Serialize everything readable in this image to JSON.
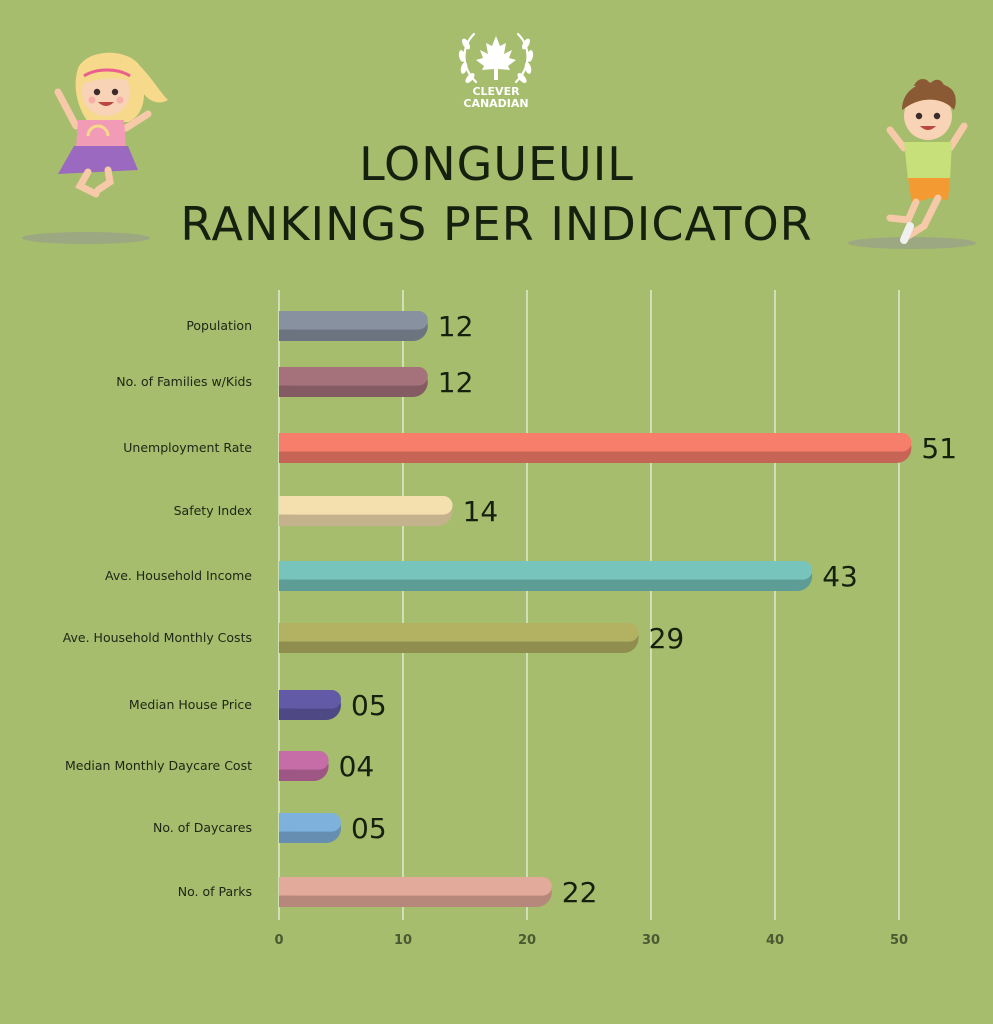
{
  "brand": {
    "line1": "CLEVER",
    "line2": "CANADIAN"
  },
  "header": {
    "line1": "LONGUEUIL",
    "line2": "RANKINGS PER INDICATOR"
  },
  "icons": [
    "maple-leaf-icon",
    "laurel-wreath-icon",
    "girl-illustration",
    "boy-illustration"
  ],
  "chart_data": {
    "type": "bar",
    "orientation": "horizontal",
    "title": "LONGUEUIL RANKINGS PER INDICATOR",
    "categories": [
      "Population",
      "No. of Families w/Kids",
      "Unemployment Rate",
      "Safety Index",
      "Ave. Household Income",
      "Ave. Household Monthly Costs",
      "Median House Price",
      "Median Monthly Daycare Cost",
      "No. of Daycares",
      "No. of Parks"
    ],
    "values": [
      12,
      12,
      51,
      14,
      43,
      29,
      5,
      4,
      5,
      22
    ],
    "value_labels": [
      "12",
      "12",
      "51",
      "14",
      "43",
      "29",
      "05",
      "04",
      "05",
      "22"
    ],
    "xlim": [
      0,
      52
    ],
    "xticks": [
      0,
      10,
      20,
      30,
      40,
      50
    ],
    "grid": true,
    "colors": [
      "#8791a0",
      "#a5727c",
      "#f77e6a",
      "#f4dfae",
      "#76c4bc",
      "#b3b263",
      "#625aa6",
      "#c66ca6",
      "#7eb2dc",
      "#e2aa9a"
    ]
  }
}
